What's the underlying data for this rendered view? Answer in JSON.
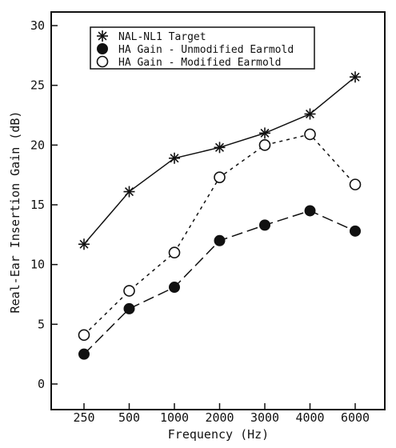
{
  "chart_data": {
    "type": "line",
    "categories": [
      "250",
      "500",
      "1000",
      "2000",
      "3000",
      "4000",
      "6000"
    ],
    "xlabel": "Frequency (Hz)",
    "ylabel": "Real-Ear Insertion Gain (dB)",
    "ylim": [
      0,
      30
    ],
    "yticks": [
      "0",
      "5",
      "10",
      "15",
      "20",
      "25",
      "30"
    ],
    "grid": false,
    "legend_position": "top-left",
    "series": [
      {
        "name": "NAL-NL1 Target",
        "marker": "asterisk",
        "line": "solid",
        "values": [
          11.7,
          16.1,
          18.9,
          19.8,
          21.0,
          22.6,
          25.7
        ]
      },
      {
        "name": "HA Gain - Unmodified Earmold",
        "marker": "filled-circle",
        "line": "long-dash",
        "values": [
          2.5,
          6.3,
          8.1,
          12.0,
          13.3,
          14.5,
          12.8
        ]
      },
      {
        "name": "HA Gain - Modified Earmold",
        "marker": "open-circle",
        "line": "short-dash",
        "values": [
          4.1,
          7.8,
          11.0,
          17.3,
          20.0,
          20.9,
          16.7
        ]
      }
    ],
    "colors": {
      "ink": "#111111",
      "background": "#ffffff"
    }
  }
}
